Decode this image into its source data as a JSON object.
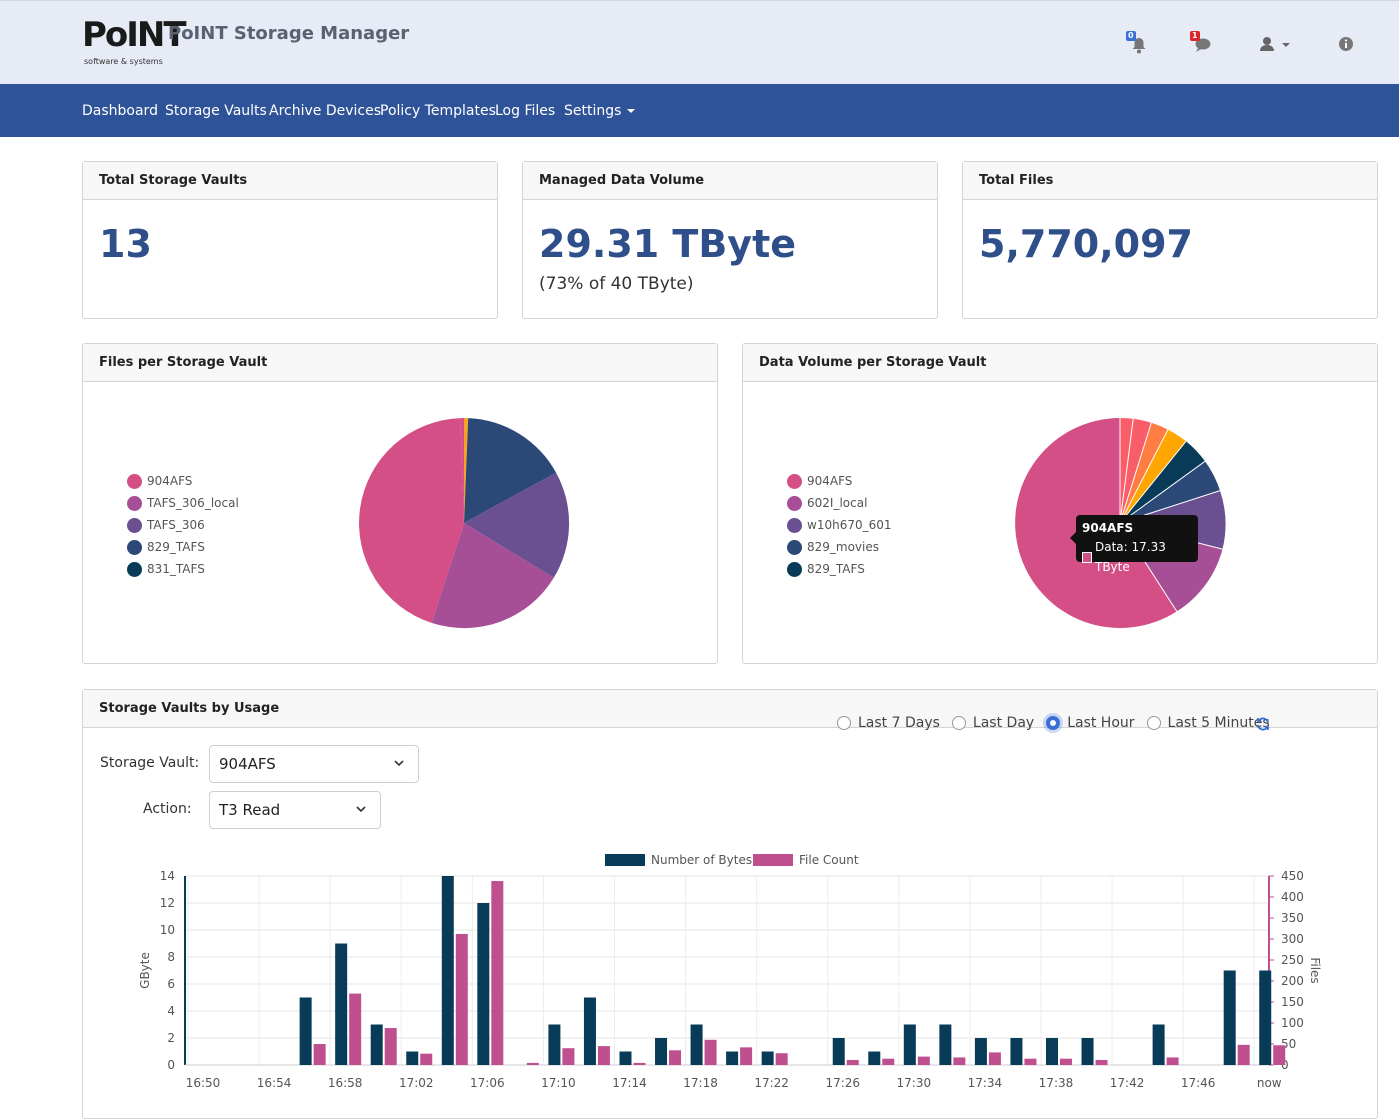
{
  "header": {
    "logo_text": "PoINT",
    "logo_sub": "software & systems",
    "app_title": "PoINT Storage Manager",
    "notifications_count": "0",
    "messages_count": "1"
  },
  "nav": {
    "items": [
      "Dashboard",
      "Storage Vaults",
      "Archive Devices",
      "Policy Templates",
      "Log Files",
      "Settings"
    ]
  },
  "stats": {
    "vaults_title": "Total Storage Vaults",
    "vaults_value": "13",
    "volume_title": "Managed Data Volume",
    "volume_value": "29.31 TByte",
    "volume_sub": "(73% of 40 TByte)",
    "files_title": "Total Files",
    "files_value": "5,770,097"
  },
  "files_pie": {
    "title": "Files per Storage Vault",
    "legend": [
      {
        "label": "904AFS",
        "color": "#d44f86"
      },
      {
        "label": "TAFS_306_local",
        "color": "#a64f96"
      },
      {
        "label": "TAFS_306",
        "color": "#6a4f91"
      },
      {
        "label": "829_TAFS",
        "color": "#2c4877"
      },
      {
        "label": "831_TAFS",
        "color": "#073b57"
      }
    ]
  },
  "volume_pie": {
    "title": "Data Volume per Storage Vault",
    "legend": [
      {
        "label": "904AFS",
        "color": "#d44f86"
      },
      {
        "label": "602I_local",
        "color": "#a64f96"
      },
      {
        "label": "w10h670_601",
        "color": "#6a4f91"
      },
      {
        "label": "829_movies",
        "color": "#2c4877"
      },
      {
        "label": "829_TAFS",
        "color": "#073b57"
      }
    ],
    "tooltip_title": "904AFS",
    "tooltip_text": "Data: 17.33 TByte"
  },
  "usage": {
    "title": "Storage Vaults by Usage",
    "vault_label": "Storage Vault:",
    "vault_value": "904AFS",
    "action_label": "Action:",
    "action_value": "T3 Read",
    "ranges": [
      {
        "label": "Last 7 Days",
        "checked": false
      },
      {
        "label": "Last Day",
        "checked": false
      },
      {
        "label": "Last Hour",
        "checked": true
      },
      {
        "label": "Last 5 Minutes",
        "checked": false
      }
    ]
  },
  "chart_data": {
    "type": "bar",
    "categories": [
      "16:50",
      "16:52",
      "16:54",
      "16:56",
      "16:58",
      "17:00",
      "17:02",
      "17:04",
      "17:06",
      "17:08",
      "17:10",
      "17:12",
      "17:14",
      "17:16",
      "17:18",
      "17:20",
      "17:22",
      "17:24",
      "17:26",
      "17:28",
      "17:30",
      "17:32",
      "17:34",
      "17:36",
      "17:38",
      "17:40",
      "17:42",
      "17:44",
      "17:46",
      "17:48",
      "now"
    ],
    "tick_labels": [
      "16:50",
      "16:54",
      "16:58",
      "17:02",
      "17:06",
      "17:10",
      "17:14",
      "17:18",
      "17:22",
      "17:26",
      "17:30",
      "17:34",
      "17:38",
      "17:42",
      "17:46",
      "now"
    ],
    "series": [
      {
        "name": "Number of Bytes",
        "axis": "left",
        "color": "#073b57",
        "values": [
          0,
          0,
          0,
          5,
          9,
          3,
          1,
          14,
          12,
          0,
          3,
          5,
          1,
          2,
          3,
          1,
          1,
          0,
          2,
          1,
          3,
          3,
          2,
          2,
          2,
          2,
          0,
          3,
          0,
          7,
          7
        ]
      },
      {
        "name": "File Count",
        "axis": "right",
        "color": "#bf4f8f",
        "values": [
          0,
          0,
          0,
          50,
          170,
          88,
          27,
          312,
          438,
          5,
          40,
          45,
          5,
          35,
          60,
          42,
          28,
          0,
          12,
          15,
          20,
          18,
          30,
          15,
          15,
          12,
          0,
          18,
          0,
          48,
          47
        ]
      }
    ],
    "ylabel": "GByte",
    "y2label": "Files",
    "ylim": [
      0,
      14
    ],
    "y2lim": [
      0,
      450
    ],
    "yticks": [
      0,
      2,
      4,
      6,
      8,
      10,
      12,
      14
    ],
    "y2ticks": [
      0,
      50,
      100,
      150,
      200,
      250,
      300,
      350,
      400,
      450
    ],
    "legend_position": "top"
  }
}
